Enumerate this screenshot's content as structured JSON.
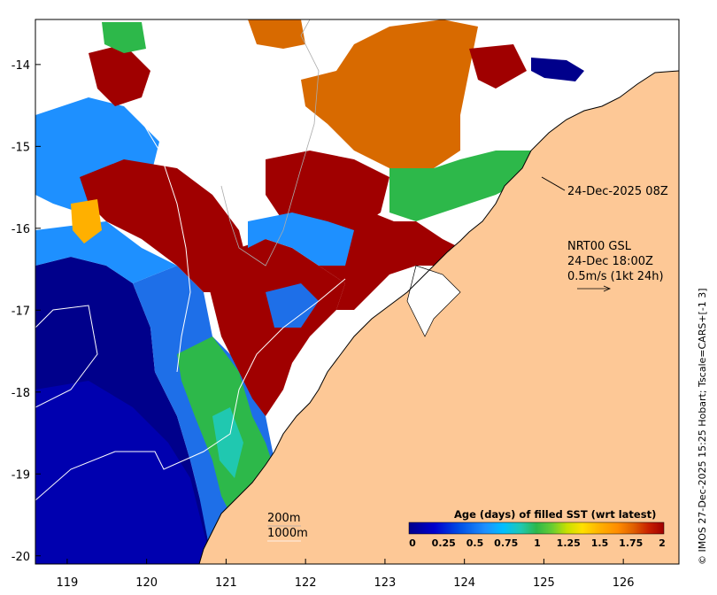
{
  "map": {
    "x_ticks": [
      "119",
      "120",
      "121",
      "122",
      "123",
      "124",
      "125",
      "126"
    ],
    "y_ticks": [
      "-14",
      "-15",
      "-16",
      "-17",
      "-18",
      "-19",
      "-20"
    ],
    "lon_range": [
      118.6,
      126.7
    ],
    "lat_range": [
      -20.1,
      -13.45
    ]
  },
  "annotations": {
    "date_label": "24-Dec-2025 08Z",
    "nrt_line1": "NRT00 GSL",
    "nrt_line2": "24-Dec 18:00Z",
    "nrt_line3": "0.5m/s (1kt 24h)",
    "depth_200": "200m",
    "depth_1000": "1000m"
  },
  "colorbar": {
    "title": "Age (days) of filled SST (wrt latest)",
    "tick_labels": [
      "0",
      "0.25",
      "0.5",
      "0.75",
      "1",
      "1.25",
      "1.5",
      "1.75",
      "2"
    ],
    "colors": [
      "#00008b",
      "#0000cd",
      "#0050e6",
      "#1e90ff",
      "#00bfff",
      "#20c8b0",
      "#2db84a",
      "#66cc33",
      "#c8e000",
      "#ffe000",
      "#ffb000",
      "#ff8c00",
      "#e06000",
      "#c82000",
      "#a00000"
    ]
  },
  "credit": "© IMOS 27-Dec-2025 15:25 Hobart; Tscale=CARS+[-1 3]",
  "colors": {
    "land": "#fdc896",
    "deep_ocean": "#00008b",
    "no_data": "#ffffff"
  }
}
